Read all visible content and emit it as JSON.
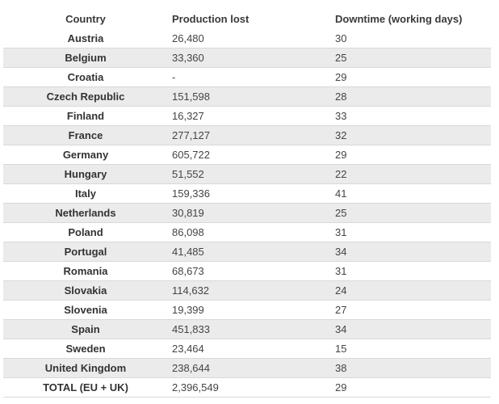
{
  "table": {
    "headers": [
      "Country",
      "Production lost",
      "Downtime (working days)"
    ],
    "rows": [
      [
        "Austria",
        "26,480",
        "30"
      ],
      [
        "Belgium",
        "33,360",
        "25"
      ],
      [
        "Croatia",
        "-",
        "29"
      ],
      [
        "Czech Republic",
        "151,598",
        "28"
      ],
      [
        "Finland",
        "16,327",
        "33"
      ],
      [
        "France",
        "277,127",
        "32"
      ],
      [
        "Germany",
        "605,722",
        "29"
      ],
      [
        "Hungary",
        "51,552",
        "22"
      ],
      [
        "Italy",
        "159,336",
        "41"
      ],
      [
        "Netherlands",
        "30,819",
        "25"
      ],
      [
        "Poland",
        "86,098",
        "31"
      ],
      [
        "Portugal",
        "41,485",
        "34"
      ],
      [
        "Romania",
        "68,673",
        "31"
      ],
      [
        "Slovakia",
        "114,632",
        "24"
      ],
      [
        "Slovenia",
        "19,399",
        "27"
      ],
      [
        "Spain",
        "451,833",
        "34"
      ],
      [
        "Sweden",
        "23,464",
        "15"
      ],
      [
        "United Kingdom",
        "238,644",
        "38"
      ],
      [
        "TOTAL (EU + UK)",
        "2,396,549",
        "29"
      ]
    ]
  }
}
